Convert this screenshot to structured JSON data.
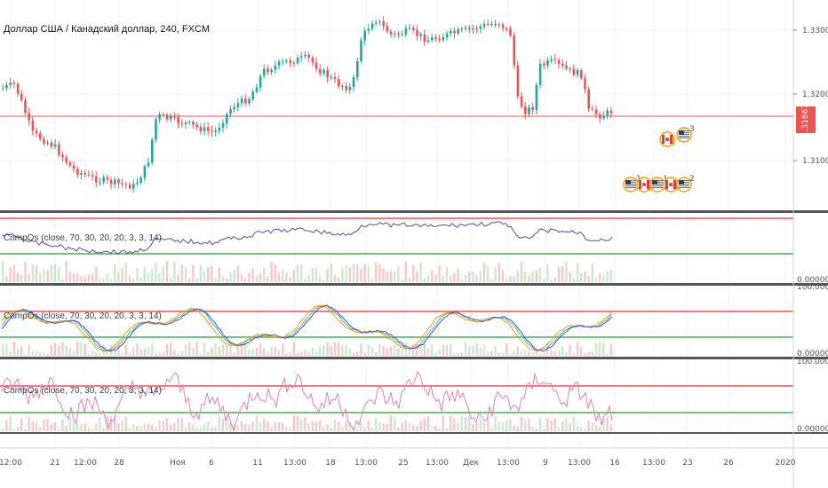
{
  "symbol": {
    "title": "Доллар США / Канадский доллар, 240, FXCM"
  },
  "price_axis": {
    "labels": [
      "1.33000",
      "1.32000",
      "1.31667",
      "1.31000"
    ],
    "last_price": "1.31667"
  },
  "panes": [
    {
      "label": "CompOs (close, 70, 30, 20, 20, 3, 3, 14)",
      "axis_labels": [
        "0.00000"
      ]
    },
    {
      "label": "CompOs (close, 70, 30, 20, 20, 3, 3, 14)",
      "axis_labels": [
        "100.00000",
        "0.00000"
      ]
    },
    {
      "label": "CompOs (close, 70, 30, 20, 20, 3, 3, 14)",
      "axis_labels": [
        "100.00000",
        "0.00000"
      ]
    }
  ],
  "time_axis": {
    "labels": [
      "12:00",
      "21",
      "12:00",
      "28",
      "Ноя",
      "6",
      "11",
      "13:00",
      "18",
      "13:00",
      "25",
      "13:00",
      "Дек",
      "13:00",
      "9",
      "13:00",
      "16",
      "13:00",
      "23",
      "26",
      "2020"
    ]
  },
  "colors": {
    "up_candle": "#26a69a",
    "down_candle": "#ef5350",
    "upper_level": "#ef5350",
    "lower_level": "#4caf50",
    "osc_purple": "#5b4aa3",
    "osc_pink": "#e07fb3",
    "osc_teal": "#26c6da",
    "osc_orange": "#ff9800"
  },
  "icons": [
    "canada-flag-icon",
    "us-flag-icon"
  ]
}
